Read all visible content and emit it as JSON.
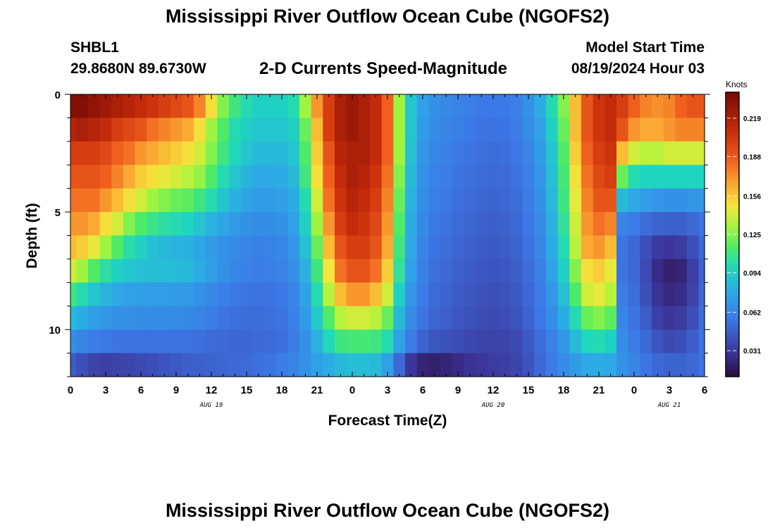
{
  "page": {
    "title": "Mississippi River Outflow Ocean Cube (NGOFS2)",
    "repeated_title": "Mississippi River Outflow Ocean Cube (NGOFS2)",
    "station_id": "SHBL1",
    "coordinates": "29.8680N  89.6730W",
    "plot_label": "2-D Currents Speed-Magnitude",
    "model_start_label": "Model Start Time",
    "model_start_value": "08/19/2024 Hour 03"
  },
  "chart_data": {
    "type": "heatmap",
    "title": "2-D Currents Speed-Magnitude",
    "xlabel": "Forecast Time(Z)",
    "ylabel": "Depth (ft)",
    "x_range_hours": [
      0,
      54
    ],
    "y_range_ft": [
      0,
      12
    ],
    "y_reversed": true,
    "x_tick_labels": [
      "0",
      "3",
      "6",
      "9",
      "12",
      "15",
      "18",
      "21",
      "0",
      "3",
      "6",
      "9",
      "12",
      "15",
      "18",
      "21",
      "0",
      "3",
      "6"
    ],
    "y_tick_labels": [
      "0",
      "5",
      "10"
    ],
    "y_tick_values": [
      0,
      5,
      10
    ],
    "day_labels": [
      {
        "label": "AUG 19",
        "hour": 12
      },
      {
        "label": "AUG 20",
        "hour": 36
      },
      {
        "label": "AUG 21",
        "hour": 51
      }
    ],
    "colorbar": {
      "unit": "Knots",
      "min": 0.01,
      "max": 0.24,
      "tick_values": [
        0.031,
        0.062,
        0.094,
        0.125,
        0.156,
        0.188,
        0.219
      ],
      "tick_labels": [
        "0.031",
        "0.062",
        "0.094",
        "0.125",
        "0.156",
        "0.188",
        "0.219"
      ]
    },
    "depth_levels_ft": [
      0.5,
      1.5,
      2.5,
      3.5,
      4.5,
      5.5,
      6.5,
      7.5,
      8.5,
      9.5,
      10.5,
      11.5
    ],
    "time_hours": [
      0,
      1,
      2,
      3,
      4,
      5,
      6,
      7,
      8,
      9,
      10,
      11,
      12,
      13,
      14,
      15,
      16,
      17,
      18,
      19,
      20,
      21,
      22,
      23,
      24,
      25,
      26,
      27,
      28,
      29,
      30,
      31,
      32,
      33,
      34,
      35,
      36,
      37,
      38,
      39,
      40,
      41,
      42,
      43,
      44,
      45,
      46,
      47,
      48,
      49,
      50,
      51,
      52,
      53,
      54
    ],
    "speed_knots": [
      [
        0.235,
        0.235,
        0.23,
        0.225,
        0.22,
        0.215,
        0.21,
        0.205,
        0.2,
        0.195,
        0.19,
        0.175,
        0.15,
        0.125,
        0.11,
        0.1,
        0.095,
        0.095,
        0.095,
        0.1,
        0.13,
        0.17,
        0.2,
        0.22,
        0.225,
        0.22,
        0.21,
        0.185,
        0.13,
        0.09,
        0.075,
        0.068,
        0.064,
        0.061,
        0.059,
        0.057,
        0.056,
        0.057,
        0.06,
        0.068,
        0.08,
        0.1,
        0.125,
        0.16,
        0.19,
        0.205,
        0.21,
        0.2,
        0.185,
        0.175,
        0.172,
        0.175,
        0.185,
        0.19,
        0.19
      ],
      [
        0.215,
        0.22,
        0.215,
        0.21,
        0.2,
        0.195,
        0.19,
        0.18,
        0.175,
        0.17,
        0.165,
        0.15,
        0.13,
        0.115,
        0.1,
        0.095,
        0.09,
        0.09,
        0.09,
        0.095,
        0.12,
        0.16,
        0.2,
        0.22,
        0.225,
        0.22,
        0.21,
        0.185,
        0.13,
        0.09,
        0.072,
        0.065,
        0.062,
        0.059,
        0.057,
        0.055,
        0.054,
        0.055,
        0.058,
        0.065,
        0.075,
        0.095,
        0.12,
        0.16,
        0.19,
        0.205,
        0.21,
        0.19,
        0.17,
        0.165,
        0.165,
        0.17,
        0.175,
        0.175,
        0.175
      ],
      [
        0.2,
        0.2,
        0.2,
        0.195,
        0.185,
        0.18,
        0.17,
        0.165,
        0.16,
        0.155,
        0.15,
        0.14,
        0.125,
        0.11,
        0.098,
        0.09,
        0.085,
        0.085,
        0.085,
        0.09,
        0.115,
        0.155,
        0.19,
        0.215,
        0.22,
        0.22,
        0.21,
        0.185,
        0.13,
        0.088,
        0.07,
        0.063,
        0.06,
        0.057,
        0.055,
        0.053,
        0.052,
        0.053,
        0.056,
        0.062,
        0.072,
        0.09,
        0.115,
        0.155,
        0.185,
        0.2,
        0.205,
        0.16,
        0.14,
        0.135,
        0.135,
        0.14,
        0.14,
        0.14,
        0.14
      ],
      [
        0.19,
        0.19,
        0.19,
        0.185,
        0.175,
        0.165,
        0.155,
        0.15,
        0.145,
        0.14,
        0.135,
        0.128,
        0.115,
        0.1,
        0.09,
        0.083,
        0.078,
        0.078,
        0.08,
        0.085,
        0.11,
        0.15,
        0.185,
        0.21,
        0.22,
        0.215,
        0.205,
        0.18,
        0.125,
        0.085,
        0.068,
        0.061,
        0.058,
        0.055,
        0.053,
        0.051,
        0.05,
        0.051,
        0.054,
        0.06,
        0.07,
        0.088,
        0.112,
        0.15,
        0.18,
        0.195,
        0.2,
        0.12,
        0.1,
        0.097,
        0.096,
        0.097,
        0.097,
        0.097,
        0.097
      ],
      [
        0.18,
        0.18,
        0.18,
        0.17,
        0.16,
        0.15,
        0.14,
        0.13,
        0.125,
        0.12,
        0.118,
        0.11,
        0.1,
        0.09,
        0.082,
        0.076,
        0.072,
        0.072,
        0.074,
        0.08,
        0.1,
        0.14,
        0.18,
        0.205,
        0.215,
        0.21,
        0.2,
        0.175,
        0.12,
        0.082,
        0.066,
        0.059,
        0.056,
        0.053,
        0.051,
        0.049,
        0.048,
        0.049,
        0.052,
        0.058,
        0.068,
        0.085,
        0.11,
        0.145,
        0.175,
        0.19,
        0.19,
        0.085,
        0.078,
        0.073,
        0.07,
        0.068,
        0.068,
        0.07,
        0.07
      ],
      [
        0.17,
        0.17,
        0.165,
        0.15,
        0.14,
        0.125,
        0.115,
        0.108,
        0.103,
        0.1,
        0.097,
        0.09,
        0.083,
        0.077,
        0.072,
        0.068,
        0.065,
        0.066,
        0.068,
        0.075,
        0.095,
        0.13,
        0.17,
        0.2,
        0.21,
        0.205,
        0.195,
        0.17,
        0.115,
        0.08,
        0.064,
        0.057,
        0.054,
        0.051,
        0.049,
        0.047,
        0.046,
        0.047,
        0.05,
        0.056,
        0.065,
        0.082,
        0.105,
        0.14,
        0.17,
        0.18,
        0.175,
        0.062,
        0.058,
        0.052,
        0.048,
        0.047,
        0.047,
        0.05,
        0.055
      ],
      [
        0.16,
        0.155,
        0.145,
        0.13,
        0.115,
        0.102,
        0.094,
        0.088,
        0.085,
        0.083,
        0.082,
        0.077,
        0.072,
        0.068,
        0.065,
        0.062,
        0.06,
        0.061,
        0.063,
        0.07,
        0.088,
        0.12,
        0.16,
        0.19,
        0.2,
        0.2,
        0.19,
        0.165,
        0.11,
        0.078,
        0.062,
        0.055,
        0.052,
        0.049,
        0.047,
        0.045,
        0.044,
        0.045,
        0.048,
        0.054,
        0.063,
        0.08,
        0.1,
        0.135,
        0.165,
        0.17,
        0.16,
        0.055,
        0.05,
        0.04,
        0.032,
        0.03,
        0.032,
        0.04,
        0.05
      ],
      [
        0.14,
        0.13,
        0.115,
        0.103,
        0.095,
        0.09,
        0.088,
        0.087,
        0.087,
        0.086,
        0.085,
        0.08,
        0.074,
        0.068,
        0.063,
        0.06,
        0.058,
        0.059,
        0.061,
        0.067,
        0.082,
        0.11,
        0.148,
        0.18,
        0.19,
        0.19,
        0.18,
        0.155,
        0.105,
        0.075,
        0.06,
        0.053,
        0.05,
        0.047,
        0.045,
        0.043,
        0.042,
        0.043,
        0.046,
        0.052,
        0.06,
        0.075,
        0.095,
        0.125,
        0.15,
        0.155,
        0.145,
        0.055,
        0.05,
        0.038,
        0.025,
        0.02,
        0.022,
        0.033,
        0.048
      ],
      [
        0.11,
        0.1,
        0.09,
        0.083,
        0.078,
        0.075,
        0.074,
        0.073,
        0.073,
        0.072,
        0.071,
        0.068,
        0.064,
        0.06,
        0.057,
        0.055,
        0.054,
        0.055,
        0.057,
        0.062,
        0.076,
        0.1,
        0.135,
        0.16,
        0.17,
        0.17,
        0.16,
        0.14,
        0.095,
        0.07,
        0.058,
        0.051,
        0.048,
        0.045,
        0.043,
        0.041,
        0.04,
        0.041,
        0.044,
        0.05,
        0.058,
        0.07,
        0.088,
        0.115,
        0.14,
        0.145,
        0.135,
        0.058,
        0.052,
        0.04,
        0.028,
        0.024,
        0.026,
        0.035,
        0.05
      ],
      [
        0.085,
        0.08,
        0.074,
        0.07,
        0.068,
        0.067,
        0.066,
        0.066,
        0.066,
        0.065,
        0.064,
        0.062,
        0.058,
        0.055,
        0.053,
        0.052,
        0.052,
        0.053,
        0.055,
        0.06,
        0.072,
        0.092,
        0.115,
        0.135,
        0.14,
        0.14,
        0.135,
        0.12,
        0.085,
        0.065,
        0.055,
        0.049,
        0.046,
        0.043,
        0.041,
        0.039,
        0.038,
        0.039,
        0.042,
        0.048,
        0.056,
        0.066,
        0.08,
        0.1,
        0.12,
        0.125,
        0.118,
        0.062,
        0.055,
        0.045,
        0.034,
        0.03,
        0.032,
        0.04,
        0.052
      ],
      [
        0.065,
        0.062,
        0.058,
        0.056,
        0.055,
        0.054,
        0.054,
        0.054,
        0.054,
        0.054,
        0.054,
        0.053,
        0.051,
        0.05,
        0.049,
        0.049,
        0.05,
        0.051,
        0.053,
        0.058,
        0.068,
        0.082,
        0.098,
        0.11,
        0.112,
        0.112,
        0.11,
        0.1,
        0.075,
        0.058,
        0.048,
        0.043,
        0.041,
        0.039,
        0.037,
        0.036,
        0.035,
        0.036,
        0.038,
        0.044,
        0.052,
        0.06,
        0.07,
        0.085,
        0.098,
        0.1,
        0.095,
        0.065,
        0.058,
        0.05,
        0.042,
        0.038,
        0.04,
        0.046,
        0.055
      ],
      [
        0.045,
        0.04,
        0.035,
        0.034,
        0.035,
        0.036,
        0.038,
        0.04,
        0.042,
        0.044,
        0.046,
        0.047,
        0.048,
        0.049,
        0.05,
        0.051,
        0.053,
        0.055,
        0.058,
        0.062,
        0.068,
        0.075,
        0.08,
        0.085,
        0.087,
        0.087,
        0.085,
        0.075,
        0.05,
        0.03,
        0.022,
        0.02,
        0.022,
        0.025,
        0.028,
        0.03,
        0.032,
        0.033,
        0.036,
        0.042,
        0.05,
        0.058,
        0.065,
        0.072,
        0.078,
        0.08,
        0.078,
        0.068,
        0.062,
        0.055,
        0.05,
        0.048,
        0.048,
        0.05,
        0.055
      ]
    ]
  }
}
